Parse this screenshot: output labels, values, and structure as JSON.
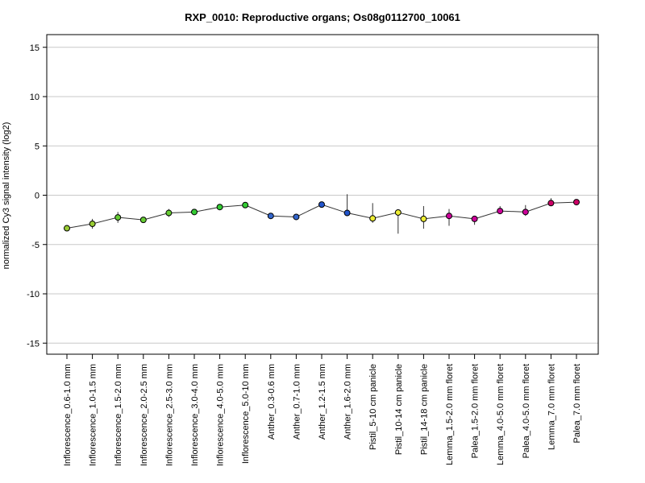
{
  "chart_data": {
    "type": "line",
    "title": "RXP_0010: Reproductive organs; Os08g0112700_10061",
    "xlabel": "",
    "ylabel": "normalized Cy3 signal intensity (log2)",
    "ylim": [
      -16.2,
      16.2
    ],
    "yticks": [
      -15,
      -10,
      -5,
      0,
      5,
      10,
      15
    ],
    "ytick_labels": [
      "-15",
      "-10",
      "-5",
      "0",
      "5",
      "10",
      "15"
    ],
    "grid": true,
    "categories": [
      "Inflorescence_0.6-1.0 mm",
      "Inflorescence_1.0-1.5 mm",
      "Inflorescence_1.5-2.0 mm",
      "Inflorescence_2.0-2.5 mm",
      "Inflorescence_2.5-3.0 mm",
      "Inflorescence_3.0-4.0 mm",
      "Inflorescence_4.0-5.0 mm",
      "Inflorescence_5.0-10 mm",
      "Anther_0.3-0.6 mm",
      "Anther_0.7-1.0 mm",
      "Anther_1.2-1.5 mm",
      "Anther_1.6-2.0 mm",
      "Pistil_5-10 cm panicle",
      "Pistil_10-14 cm panicle",
      "Pistil_14-18 cm panicle",
      "Lemma_1.5-2.0 mm floret",
      "Palea_1.5-2.0 mm floret",
      "Lemma_4.0-5.0 mm floret",
      "Palea_4.0-5.0 mm floret",
      "Lemma_7.0 mm floret",
      "Palea_7.0 mm floret"
    ],
    "values": [
      -3.35,
      -2.9,
      -2.25,
      -2.5,
      -1.8,
      -1.7,
      -1.2,
      -1.0,
      -2.1,
      -2.2,
      -0.95,
      -1.8,
      -2.35,
      -1.75,
      -2.4,
      -2.1,
      -2.4,
      -1.6,
      -1.7,
      -0.8,
      -0.7
    ],
    "error_low": [
      -3.35,
      -3.4,
      -2.8,
      -2.5,
      -2.2,
      -1.7,
      -1.2,
      -1.0,
      -2.1,
      -2.2,
      -1.2,
      -1.8,
      -2.8,
      -3.9,
      -3.4,
      -3.1,
      -3.0,
      -1.8,
      -2.1,
      -1.1,
      -0.9
    ],
    "error_high": [
      -3.35,
      -2.4,
      -1.7,
      -2.5,
      -1.4,
      -1.7,
      -1.2,
      -1.0,
      -2.1,
      -2.2,
      -0.7,
      0.1,
      -0.8,
      -1.5,
      -1.1,
      -1.4,
      -2.1,
      -1.1,
      -1.0,
      -0.3,
      -0.5
    ],
    "marker_colors": [
      "#99cc33",
      "#99cc33",
      "#66cc33",
      "#66cc33",
      "#66cc33",
      "#33cc33",
      "#33cc33",
      "#33cc33",
      "#3366cc",
      "#3366cc",
      "#2255cc",
      "#2255cc",
      "#eeee33",
      "#eeee33",
      "#eeee33",
      "#cc0099",
      "#cc0099",
      "#cc0099",
      "#cc0099",
      "#cc0066",
      "#cc0066"
    ],
    "line_color": "#333333"
  }
}
